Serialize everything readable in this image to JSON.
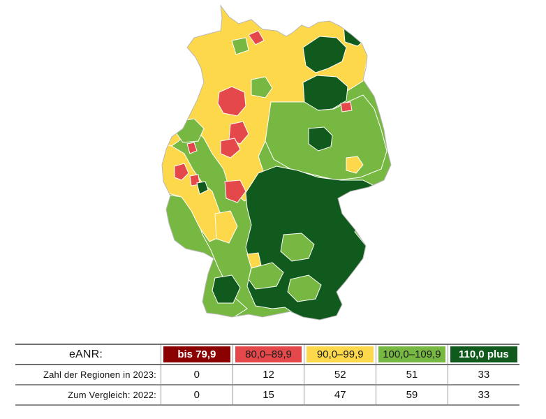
{
  "map": {
    "regions_by_class": [
      {
        "class": "bis 79,9",
        "count_2023": 0
      },
      {
        "class": "80,0–89,9",
        "count_2023": 12
      },
      {
        "class": "90,0–99,9",
        "count_2023": 52
      },
      {
        "class": "100,0–109,9",
        "count_2023": 51
      },
      {
        "class": "110,0 plus",
        "count_2023": 33
      }
    ]
  },
  "legend": {
    "header_label": "eANR:",
    "classes": [
      {
        "label": "bis 79,9",
        "color": "#8b0000",
        "text_color": "#ffffff"
      },
      {
        "label": "80,0–89,9",
        "color": "#e5484a",
        "text_color": "#1a1a1a"
      },
      {
        "label": "90,0–99,9",
        "color": "#fdd84a",
        "text_color": "#1a1a1a"
      },
      {
        "label": "100,0–109,9",
        "color": "#77b843",
        "text_color": "#1a1a1a"
      },
      {
        "label": "110,0 plus",
        "color": "#0f5a1c",
        "text_color": "#ffffff"
      }
    ],
    "rows": [
      {
        "label": "Zahl der Regionen in 2023:",
        "values": [
          "0",
          "12",
          "52",
          "51",
          "33"
        ]
      },
      {
        "label": "Zum Vergleich: 2022:",
        "values": [
          "0",
          "15",
          "47",
          "59",
          "33"
        ]
      }
    ]
  },
  "colors": {
    "dark_red": "#8b0000",
    "red": "#e5484a",
    "yellow": "#fdd84a",
    "light_green": "#77b843",
    "dark_green": "#0f5a1c",
    "region_border": "#ffffff"
  }
}
